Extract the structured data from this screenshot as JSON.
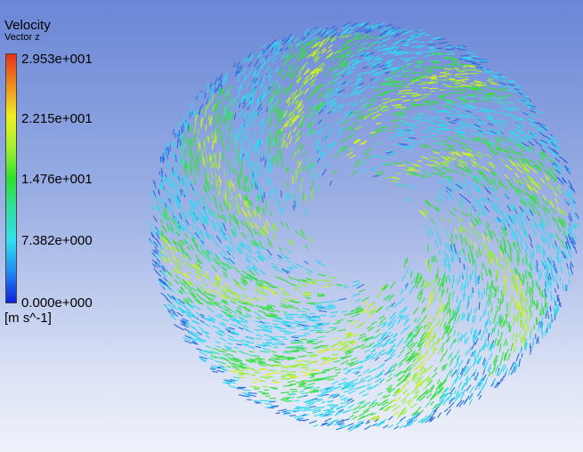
{
  "legend": {
    "title": "Velocity",
    "subtitle": "Vector z",
    "labels": [
      "2.953e+001",
      "2.215e+001",
      "1.476e+001",
      "7.382e+000",
      "0.000e+000"
    ],
    "unit": "[m s^-1]"
  }
}
